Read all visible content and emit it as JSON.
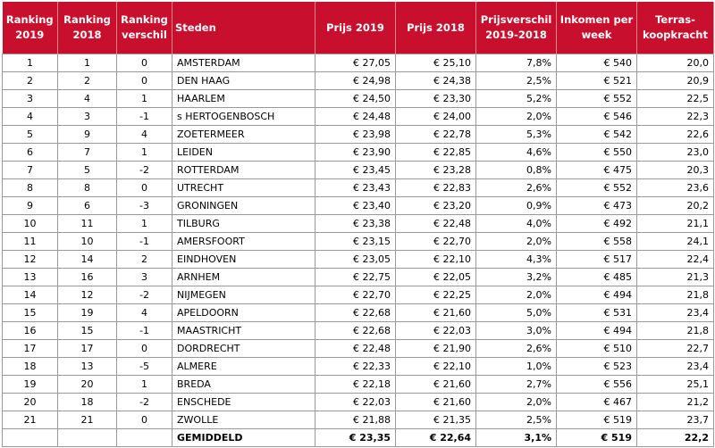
{
  "table": {
    "header": [
      "Ranking 2019",
      "Ranking 2018",
      "Ranking verschil",
      "Steden",
      "Prijs 2019",
      "Prijs 2018",
      "Prijsverschil 2019-2018",
      "Inkomen per week",
      "Terras-koopkracht"
    ],
    "rows": [
      [
        "1",
        "1",
        "0",
        "AMSTERDAM",
        "€ 27,05",
        "€ 25,10",
        "7,8%",
        "€ 540",
        "20,0"
      ],
      [
        "2",
        "2",
        "0",
        "DEN HAAG",
        "€ 24,98",
        "€ 24,38",
        "2,5%",
        "€ 521",
        "20,9"
      ],
      [
        "3",
        "4",
        "1",
        "HAARLEM",
        "€ 24,50",
        "€ 23,30",
        "5,2%",
        "€ 552",
        "22,5"
      ],
      [
        "4",
        "3",
        "-1",
        "s HERTOGENBOSCH",
        "€ 24,48",
        "€ 24,00",
        "2,0%",
        "€ 546",
        "22,3"
      ],
      [
        "5",
        "9",
        "4",
        "ZOETERMEER",
        "€ 23,98",
        "€ 22,78",
        "5,3%",
        "€ 542",
        "22,6"
      ],
      [
        "6",
        "7",
        "1",
        "LEIDEN",
        "€ 23,90",
        "€ 22,85",
        "4,6%",
        "€ 550",
        "23,0"
      ],
      [
        "7",
        "5",
        "-2",
        "ROTTERDAM",
        "€ 23,45",
        "€ 23,28",
        "0,8%",
        "€ 475",
        "20,3"
      ],
      [
        "8",
        "8",
        "0",
        "UTRECHT",
        "€ 23,43",
        "€ 22,83",
        "2,6%",
        "€ 552",
        "23,6"
      ],
      [
        "9",
        "6",
        "-3",
        "GRONINGEN",
        "€ 23,40",
        "€ 23,20",
        "0,9%",
        "€ 473",
        "20,2"
      ],
      [
        "10",
        "11",
        "1",
        "TILBURG",
        "€ 23,38",
        "€ 22,48",
        "4,0%",
        "€ 492",
        "21,1"
      ],
      [
        "11",
        "10",
        "-1",
        "AMERSFOORT",
        "€ 23,15",
        "€ 22,70",
        "2,0%",
        "€ 558",
        "24,1"
      ],
      [
        "12",
        "14",
        "2",
        "EINDHOVEN",
        "€ 23,05",
        "€ 22,10",
        "4,3%",
        "€ 517",
        "22,4"
      ],
      [
        "13",
        "16",
        "3",
        "ARNHEM",
        "€ 22,75",
        "€ 22,05",
        "3,2%",
        "€ 485",
        "21,3"
      ],
      [
        "14",
        "12",
        "-2",
        "NIJMEGEN",
        "€ 22,70",
        "€ 22,25",
        "2,0%",
        "€ 494",
        "21,8"
      ],
      [
        "15",
        "19",
        "4",
        "APELDOORN",
        "€ 22,68",
        "€ 21,60",
        "5,0%",
        "€ 531",
        "23,4"
      ],
      [
        "16",
        "15",
        "-1",
        "MAASTRICHT",
        "€ 22,68",
        "€ 22,03",
        "3,0%",
        "€ 494",
        "21,8"
      ],
      [
        "17",
        "17",
        "0",
        "DORDRECHT",
        "€ 22,48",
        "€ 21,90",
        "2,6%",
        "€ 510",
        "22,7"
      ],
      [
        "18",
        "13",
        "-5",
        "ALMERE",
        "€ 22,33",
        "€ 22,10",
        "1,0%",
        "€ 523",
        "23,4"
      ],
      [
        "19",
        "20",
        "1",
        "BREDA",
        "€ 22,18",
        "€ 21,60",
        "2,7%",
        "€ 556",
        "25,1"
      ],
      [
        "20",
        "18",
        "-2",
        "ENSCHEDE",
        "€ 22,03",
        "€ 21,60",
        "2,0%",
        "€ 467",
        "21,2"
      ],
      [
        "21",
        "21",
        "0",
        "ZWOLLE",
        "€ 21,88",
        "€ 21,35",
        "2,5%",
        "€ 519",
        "23,7"
      ]
    ],
    "footer": {
      "label": "GEMIDDELD",
      "values": [
        "€ 23,35",
        "€ 22,64",
        "3,1%",
        "€ 519",
        "22,2"
      ]
    }
  }
}
